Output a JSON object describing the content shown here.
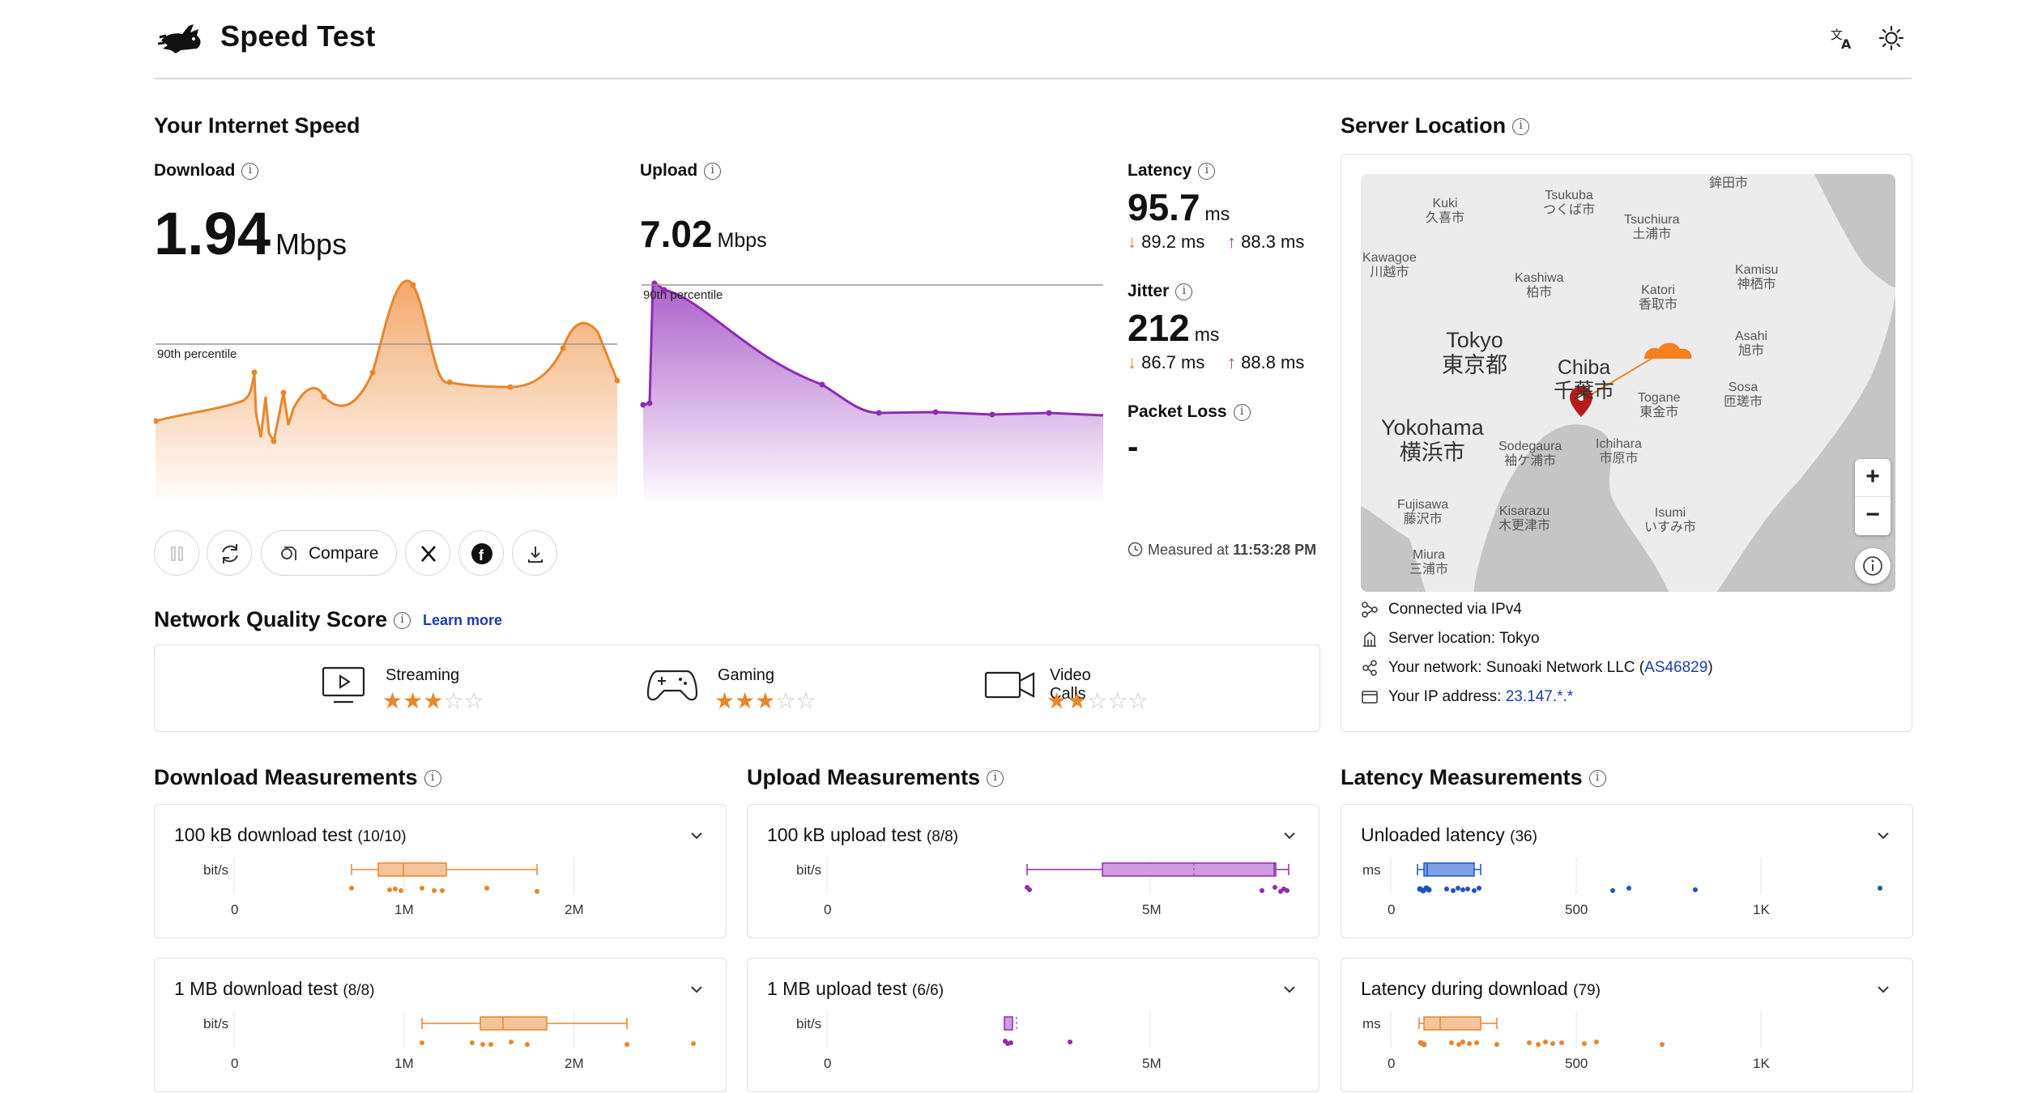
{
  "header": {
    "title": "Speed Test",
    "icons": [
      "rabbit-logo",
      "translate-icon",
      "sun-icon"
    ]
  },
  "speed": {
    "section_title": "Your Internet Speed",
    "download": {
      "label": "Download",
      "value": "1.94",
      "unit": "Mbps",
      "percentile_label": "90th percentile",
      "color": "#e8862c"
    },
    "upload": {
      "label": "Upload",
      "value": "7.02",
      "unit": "Mbps",
      "percentile_label": "90th percentile",
      "color": "#8e2bb3"
    },
    "latency": {
      "label": "Latency",
      "value": "95.7",
      "unit": "ms",
      "down": "89.2 ms",
      "up": "88.3 ms"
    },
    "jitter": {
      "label": "Jitter",
      "value": "212",
      "unit": "ms",
      "down": "86.7 ms",
      "up": "88.8 ms"
    },
    "packet_loss": {
      "label": "Packet Loss",
      "value": "-"
    },
    "actions": {
      "compare_label": "Compare",
      "icons": [
        "pause-icon",
        "restart-icon",
        "x-icon",
        "facebook-icon",
        "download-icon"
      ]
    },
    "measured_label": "Measured at",
    "measured_time": "11:53:28 PM"
  },
  "quality": {
    "section_title": "Network Quality Score",
    "learn_more": "Learn more",
    "items": [
      {
        "label": "Streaming",
        "stars": 3,
        "max": 5
      },
      {
        "label": "Gaming",
        "stars": 3,
        "max": 5
      },
      {
        "label": "Video Calls",
        "stars": 2,
        "max": 5
      }
    ]
  },
  "server": {
    "section_title": "Server Location",
    "map_labels": [
      "Kuki\n久喜市",
      "Tsukuba\nつくば市",
      "鉾田市",
      "Tsuchiura\n土浦市",
      "Kawagoe\n川越市",
      "Kashiwa\n柏市",
      "Katori\n香取市",
      "Kamisu\n神栖市",
      "Tokyo\n東京都",
      "Chiba\n千葉市",
      "Asahi\n旭市",
      "Sosa\n匝瑳市",
      "Togane\n東金市",
      "Yokohama\n横浜市",
      "Sodegaura\n袖ケ浦市",
      "Ichihara\n市原市",
      "Fujisawa\n藤沢市",
      "Kisarazu\n木更津市",
      "Isumi\nいすみ市",
      "Miura\n三浦市"
    ],
    "connected_via": "Connected via  IPv4",
    "location_label": "Server location:",
    "location_value": "Tokyo",
    "network_label": "Your network:",
    "network_name": "Sunoaki Network LLC (",
    "network_asn": "AS46829",
    "network_close": ")",
    "ip_label": "Your IP address:",
    "ip_value": "23.147.*.*"
  },
  "measurements": {
    "download_title": "Download Measurements",
    "upload_title": "Upload Measurements",
    "latency_title": "Latency Measurements",
    "cards": [
      {
        "title": "100 kB download test",
        "count": "(10/10)",
        "unit": "bit/s",
        "ticks": [
          "0",
          "1M",
          "2M"
        ],
        "color": "#e8862c"
      },
      {
        "title": "100 kB upload test",
        "count": "(8/8)",
        "unit": "bit/s",
        "ticks": [
          "0",
          "5M"
        ],
        "color": "#8e2bb3"
      },
      {
        "title": "Unloaded latency",
        "count": "(36)",
        "unit": "ms",
        "ticks": [
          "0",
          "500",
          "1K"
        ],
        "color": "#1f54c4"
      },
      {
        "title": "1 MB download test",
        "count": "(8/8)",
        "unit": "bit/s",
        "ticks": [
          "0",
          "1M",
          "2M"
        ],
        "color": "#e8862c"
      },
      {
        "title": "1 MB upload test",
        "count": "(6/6)",
        "unit": "bit/s",
        "ticks": [
          "0",
          "5M"
        ],
        "color": "#8e2bb3"
      },
      {
        "title": "Latency during download",
        "count": "(79)",
        "unit": "ms",
        "ticks": [
          "0",
          "500",
          "1K"
        ],
        "color": "#e8862c"
      }
    ]
  }
}
